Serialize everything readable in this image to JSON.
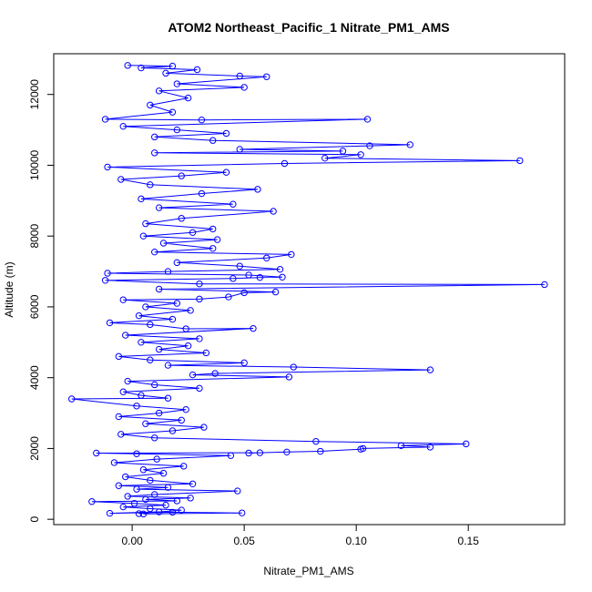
{
  "chart_data": {
    "type": "line",
    "title": "ATOM2 Northeast_Pacific_1 Nitrate_PM1_AMS",
    "xlabel": "Nitrate_PM1_AMS",
    "ylabel": "Altitude (m)",
    "xlim": [
      -0.035,
      0.193
    ],
    "ylim": [
      -150,
      13150
    ],
    "xticks": [
      {
        "value": 0.0,
        "label": "0.00"
      },
      {
        "value": 0.05,
        "label": "0.05"
      },
      {
        "value": 0.1,
        "label": "0.10"
      },
      {
        "value": 0.15,
        "label": "0.15"
      }
    ],
    "yticks": [
      {
        "value": 0,
        "label": "0"
      },
      {
        "value": 2000,
        "label": "2000"
      },
      {
        "value": 4000,
        "label": "4000"
      },
      {
        "value": 6000,
        "label": "6000"
      },
      {
        "value": 8000,
        "label": "8000"
      },
      {
        "value": 10000,
        "label": "10000"
      },
      {
        "value": 12000,
        "label": "12000"
      }
    ],
    "grid": false,
    "marker": "open-circle",
    "line_style": "solid line connecting points",
    "color": "#0000ff",
    "series": [
      {
        "values": [
          [
            0.005,
            150
          ],
          [
            0.049,
            180
          ],
          [
            0.018,
            200
          ],
          [
            -0.01,
            170
          ],
          [
            0.012,
            210
          ],
          [
            0.003,
            160
          ],
          [
            0.022,
            260
          ],
          [
            0.008,
            300
          ],
          [
            -0.004,
            350
          ],
          [
            0.015,
            400
          ],
          [
            0.001,
            450
          ],
          [
            -0.018,
            500
          ],
          [
            0.02,
            520
          ],
          [
            0.006,
            560
          ],
          [
            0.026,
            600
          ],
          [
            -0.002,
            650
          ],
          [
            0.01,
            700
          ],
          [
            0.047,
            800
          ],
          [
            0.002,
            850
          ],
          [
            0.016,
            900
          ],
          [
            -0.006,
            950
          ],
          [
            0.027,
            1000
          ],
          [
            0.008,
            1100
          ],
          [
            -0.003,
            1200
          ],
          [
            0.014,
            1300
          ],
          [
            0.005,
            1400
          ],
          [
            0.023,
            1500
          ],
          [
            -0.008,
            1600
          ],
          [
            0.011,
            1700
          ],
          [
            0.044,
            1800
          ],
          [
            0.002,
            1850
          ],
          [
            -0.016,
            1870
          ],
          [
            0.057,
            1880
          ],
          [
            0.052,
            1870
          ],
          [
            0.069,
            1900
          ],
          [
            0.084,
            1920
          ],
          [
            0.102,
            1980
          ],
          [
            0.103,
            2000
          ],
          [
            0.133,
            2040
          ],
          [
            0.12,
            2080
          ],
          [
            0.149,
            2130
          ],
          [
            0.082,
            2200
          ],
          [
            0.01,
            2300
          ],
          [
            -0.005,
            2400
          ],
          [
            0.018,
            2500
          ],
          [
            0.032,
            2600
          ],
          [
            0.006,
            2700
          ],
          [
            0.022,
            2800
          ],
          [
            -0.006,
            2900
          ],
          [
            0.012,
            3000
          ],
          [
            0.024,
            3100
          ],
          [
            0.002,
            3200
          ],
          [
            -0.027,
            3400
          ],
          [
            0.016,
            3420
          ],
          [
            0.004,
            3500
          ],
          [
            -0.004,
            3600
          ],
          [
            0.03,
            3700
          ],
          [
            0.01,
            3800
          ],
          [
            -0.002,
            3900
          ],
          [
            0.07,
            4020
          ],
          [
            0.027,
            4080
          ],
          [
            0.037,
            4120
          ],
          [
            0.133,
            4220
          ],
          [
            0.072,
            4300
          ],
          [
            0.016,
            4350
          ],
          [
            0.05,
            4420
          ],
          [
            0.008,
            4500
          ],
          [
            -0.006,
            4600
          ],
          [
            0.033,
            4700
          ],
          [
            0.012,
            4800
          ],
          [
            0.025,
            4900
          ],
          [
            0.004,
            5000
          ],
          [
            0.03,
            5100
          ],
          [
            -0.003,
            5200
          ],
          [
            0.054,
            5390
          ],
          [
            0.024,
            5380
          ],
          [
            0.008,
            5500
          ],
          [
            -0.01,
            5550
          ],
          [
            0.018,
            5650
          ],
          [
            0.003,
            5750
          ],
          [
            0.026,
            5900
          ],
          [
            0.006,
            6000
          ],
          [
            0.02,
            6100
          ],
          [
            -0.004,
            6200
          ],
          [
            0.03,
            6220
          ],
          [
            0.043,
            6280
          ],
          [
            0.05,
            6400
          ],
          [
            0.064,
            6420
          ],
          [
            0.012,
            6500
          ],
          [
            0.184,
            6630
          ],
          [
            0.03,
            6650
          ],
          [
            -0.012,
            6750
          ],
          [
            0.045,
            6800
          ],
          [
            0.057,
            6830
          ],
          [
            0.067,
            6840
          ],
          [
            0.052,
            6900
          ],
          [
            -0.011,
            6950
          ],
          [
            0.016,
            7000
          ],
          [
            0.066,
            7060
          ],
          [
            0.048,
            7150
          ],
          [
            0.02,
            7250
          ],
          [
            0.06,
            7380
          ],
          [
            0.071,
            7480
          ],
          [
            0.01,
            7550
          ],
          [
            0.036,
            7650
          ],
          [
            0.014,
            7800
          ],
          [
            0.038,
            7900
          ],
          [
            0.005,
            8000
          ],
          [
            0.027,
            8100
          ],
          [
            0.036,
            8200
          ],
          [
            0.006,
            8350
          ],
          [
            0.022,
            8500
          ],
          [
            0.063,
            8700
          ],
          [
            0.012,
            8800
          ],
          [
            0.045,
            8900
          ],
          [
            0.004,
            9050
          ],
          [
            0.031,
            9200
          ],
          [
            0.056,
            9320
          ],
          [
            0.008,
            9450
          ],
          [
            -0.005,
            9600
          ],
          [
            0.022,
            9700
          ],
          [
            0.042,
            9800
          ],
          [
            -0.011,
            9950
          ],
          [
            0.068,
            10050
          ],
          [
            0.173,
            10130
          ],
          [
            0.086,
            10200
          ],
          [
            0.102,
            10300
          ],
          [
            0.01,
            10350
          ],
          [
            0.094,
            10400
          ],
          [
            0.048,
            10450
          ],
          [
            0.106,
            10550
          ],
          [
            0.124,
            10580
          ],
          [
            0.036,
            10700
          ],
          [
            0.01,
            10800
          ],
          [
            0.042,
            10900
          ],
          [
            0.02,
            11000
          ],
          [
            -0.004,
            11100
          ],
          [
            0.105,
            11300
          ],
          [
            0.031,
            11280
          ],
          [
            -0.012,
            11300
          ],
          [
            0.018,
            11500
          ],
          [
            0.008,
            11700
          ],
          [
            0.025,
            11900
          ],
          [
            0.012,
            12100
          ],
          [
            0.05,
            12200
          ],
          [
            0.02,
            12300
          ],
          [
            0.06,
            12500
          ],
          [
            0.048,
            12520
          ],
          [
            0.015,
            12600
          ],
          [
            0.029,
            12700
          ],
          [
            0.004,
            12750
          ],
          [
            0.018,
            12800
          ],
          [
            -0.002,
            12820
          ]
        ]
      }
    ]
  }
}
